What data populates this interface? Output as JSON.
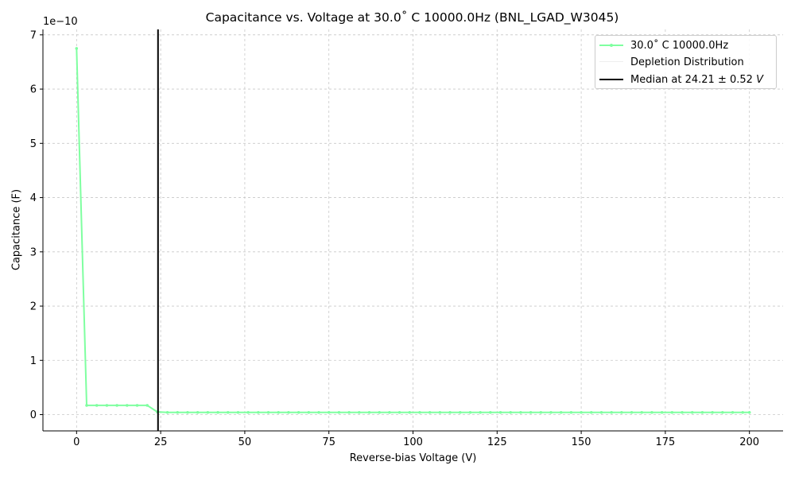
{
  "chart_data": {
    "type": "line",
    "title": "Capacitance vs. Voltage at 30.0$^\\circ$C 10000.0Hz (BNL_LGAD_W3045)",
    "title_display": "Capacitance vs. Voltage at 30.0˚ C 10000.0Hz (BNL_LGAD_W3045)",
    "xlabel": "Reverse-bias Voltage (V)",
    "ylabel": "Capacitance (F)",
    "y_offset_text": "1e−10",
    "xlim": [
      -10,
      210
    ],
    "ylim": [
      -3e-11,
      7.1e-10
    ],
    "x_ticks": [
      0,
      25,
      50,
      75,
      100,
      125,
      150,
      175,
      200
    ],
    "y_ticks": [
      0,
      1,
      2,
      3,
      4,
      5,
      6,
      7
    ],
    "y_tick_scale": 1e-10,
    "grid": true,
    "legend_position": "top-right",
    "series": [
      {
        "name": "30.0˚ C 10000.0Hz",
        "color": "#7fffa0",
        "x": [
          0,
          3,
          6,
          9,
          12,
          15,
          18,
          21,
          24,
          27,
          30,
          33,
          36,
          39,
          42,
          45,
          48,
          51,
          54,
          57,
          60,
          63,
          66,
          69,
          72,
          75,
          78,
          81,
          84,
          87,
          90,
          93,
          96,
          99,
          102,
          105,
          108,
          111,
          114,
          117,
          120,
          123,
          126,
          129,
          132,
          135,
          138,
          141,
          144,
          147,
          150,
          153,
          156,
          159,
          162,
          165,
          168,
          171,
          174,
          177,
          180,
          183,
          186,
          189,
          192,
          195,
          198,
          200
        ],
        "y": [
          6.75e-10,
          1.7e-11,
          1.7e-11,
          1.7e-11,
          1.7e-11,
          1.7e-11,
          1.7e-11,
          1.7e-11,
          5e-12,
          4e-12,
          4e-12,
          4e-12,
          4e-12,
          4e-12,
          4e-12,
          4e-12,
          4e-12,
          4e-12,
          4e-12,
          4e-12,
          4e-12,
          4e-12,
          4e-12,
          4e-12,
          4e-12,
          4e-12,
          4e-12,
          4e-12,
          4e-12,
          4e-12,
          4e-12,
          4e-12,
          4e-12,
          4e-12,
          4e-12,
          4e-12,
          4e-12,
          4e-12,
          4e-12,
          4e-12,
          4e-12,
          4e-12,
          4e-12,
          4e-12,
          4e-12,
          4e-12,
          4e-12,
          4e-12,
          4e-12,
          4e-12,
          4e-12,
          4e-12,
          4e-12,
          4e-12,
          4e-12,
          4e-12,
          4e-12,
          4e-12,
          4e-12,
          4e-12,
          4e-12,
          4e-12,
          4e-12,
          4e-12,
          4e-12,
          4e-12,
          4e-12,
          4e-12
        ]
      },
      {
        "name": "Depletion Distribution",
        "color": "#eeeeee",
        "x": [],
        "y": []
      }
    ],
    "vline": {
      "x": 24.21,
      "color": "#000000",
      "label": "Median at 24.21 ± 0.52 V",
      "label_prefix": "Median at 24.21 ± 0.52 ",
      "label_unit": "V"
    }
  }
}
